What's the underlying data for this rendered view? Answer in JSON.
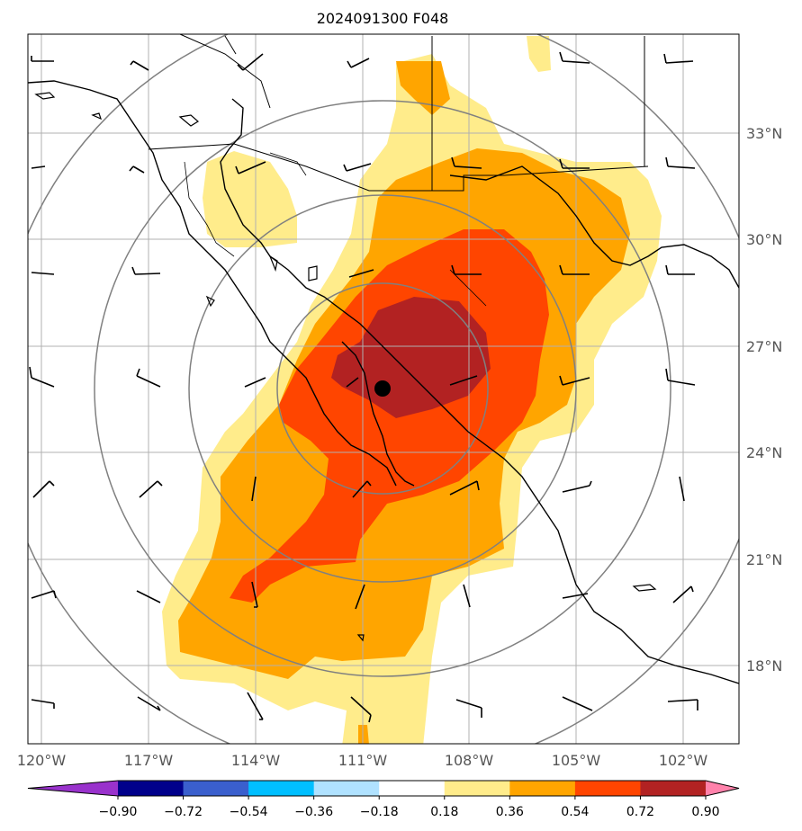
{
  "map": {
    "title": "2024091300 F048",
    "lat_labels": [
      "33°N",
      "30°N",
      "27°N",
      "24°N",
      "21°N",
      "18°N"
    ],
    "lon_labels": [
      "120°W",
      "117°W",
      "114°W",
      "111°W",
      "108°W",
      "105°W",
      "102°W"
    ],
    "center_marker": {
      "lon": -110.3,
      "lat": 25.8
    }
  },
  "colorbar": {
    "labels": [
      "−0.90",
      "−0.72",
      "−0.54",
      "−0.36",
      "−0.18",
      "0.18",
      "0.36",
      "0.54",
      "0.72",
      "0.90"
    ],
    "colors": [
      "#9932cc",
      "#00008b",
      "#3a5fcd",
      "#00bfff",
      "#b0e2ff",
      "#ffffff",
      "#ffec8b",
      "#ffa500",
      "#ff4500",
      "#b22222",
      "#ff82ab"
    ],
    "extend": "both"
  }
}
